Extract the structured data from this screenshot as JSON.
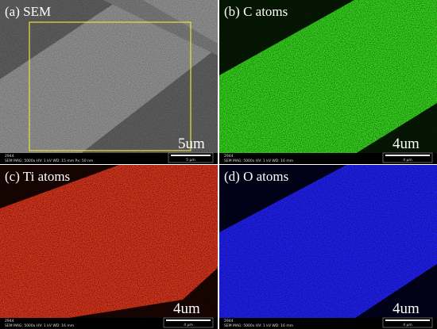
{
  "panels": [
    {
      "label": "(a) SEM",
      "scale": "5um",
      "id": "2944",
      "info": "SEM  MAG: 5000x  HV: 1 kV  WD: 15 mm  Px: 50 nm",
      "bar": "5 μm"
    },
    {
      "label": "(b) C atoms",
      "scale": "4um",
      "id": "2944",
      "info": "SEM  MAG: 5000x  HV: 1 kV  WD: 16 mm",
      "bar": "4 μm"
    },
    {
      "label": "(c) Ti atoms",
      "scale": "4um",
      "id": "2944",
      "info": "SEM  MAG: 5000x  HV: 1 kV  WD: 16 mm",
      "bar": "4 μm"
    },
    {
      "label": "(d) O atoms",
      "scale": "4um",
      "id": "2944",
      "info": "SEM  MAG: 5000x  HV: 1 kV  WD: 16 mm",
      "bar": "4 μm"
    }
  ]
}
